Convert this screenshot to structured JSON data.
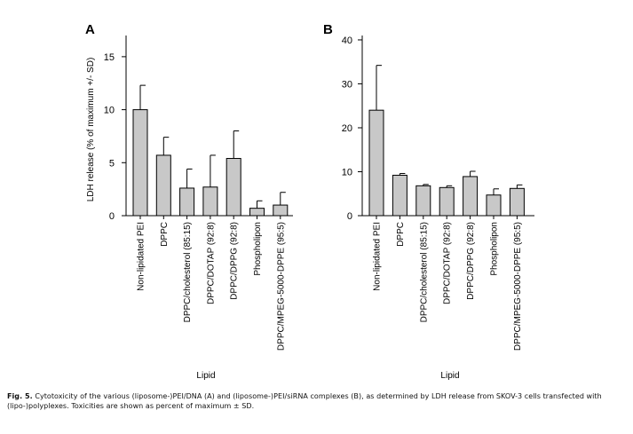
{
  "chart_data": [
    {
      "type": "bar",
      "panel_label": "A",
      "categories": [
        "Non-lipidated PEI",
        "DPPC",
        "DPPC/cholesterol (85:15)",
        "DPPC/DOTAP (92:8)",
        "DPPC/DPPG (92:8)",
        "Phospholipon",
        "DPPC/MPEG-5000-DPPE (95:5)"
      ],
      "values": [
        10.0,
        5.7,
        2.6,
        2.7,
        5.4,
        0.7,
        1.0
      ],
      "errors": [
        2.3,
        1.7,
        1.8,
        3.0,
        2.6,
        0.7,
        1.2
      ],
      "ylabel": "LDH release (% of maximum +/- SD)",
      "xlabel": "Lipid",
      "ylim": [
        0,
        17
      ],
      "yticks": [
        0,
        5,
        10,
        15
      ],
      "ytick_labels": [
        "0",
        "5",
        "10",
        "15"
      ],
      "grid": false,
      "bar_color": "#c8c8c8"
    },
    {
      "type": "bar",
      "panel_label": "B",
      "categories": [
        "Non-lipidated PEI",
        "DPPC",
        "DPPC/cholesterol (85:15)",
        "DPPC/DOTAP (92:8)",
        "DPPC/DPPG (92:8)",
        "Phospholipon",
        "DPPC/MPEG-5000-DPPE (95:5)"
      ],
      "values": [
        24.0,
        9.2,
        6.8,
        6.4,
        8.9,
        4.7,
        6.2
      ],
      "errors": [
        10.2,
        0.4,
        0.3,
        0.4,
        1.2,
        1.4,
        0.8
      ],
      "ylabel": "",
      "xlabel": "Lipid",
      "ylim": [
        0,
        41
      ],
      "yticks": [
        0,
        10,
        20,
        30,
        40
      ],
      "ytick_labels": [
        "0",
        "10",
        "20",
        "30",
        "40"
      ],
      "grid": false,
      "bar_color": "#c8c8c8"
    }
  ],
  "caption": {
    "label": "Fig. 5.",
    "text": "Cytotoxicity of the various (liposome-)PEI/DNA (A) and (liposome-)PEI/siRNA complexes (B), as determined by LDH release from SKOV-3 cells transfected with (lipo-)polyplexes. Toxicities are shown as percent of maximum ± SD."
  }
}
